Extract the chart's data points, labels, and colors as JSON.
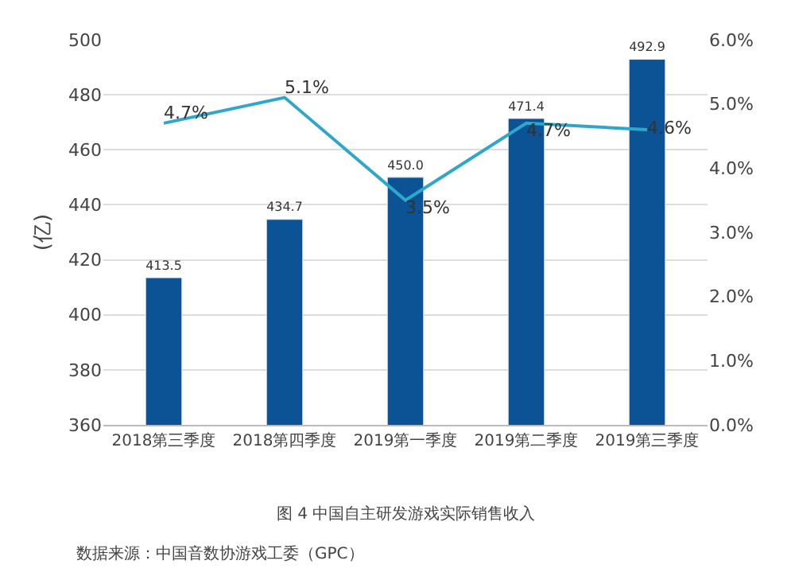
{
  "chart_data": {
    "type": "bar",
    "categories": [
      "2018第三季度",
      "2018第四季度",
      "2019第一季度",
      "2019第二季度",
      "2019第三季度"
    ],
    "ylabel": "(亿)",
    "series": [
      {
        "color": "#0b5394",
        "values": [
          413.5,
          434.7,
          450.0,
          471.4,
          492.9
        ],
        "value_labels": [
          "413.5",
          "434.7",
          "450.0",
          "471.4",
          "492.9"
        ]
      },
      {
        "type": "line",
        "axis": "y2",
        "color": "#2ea7c9",
        "values": [
          4.7,
          5.1,
          3.5,
          4.7,
          4.6
        ],
        "value_labels": [
          "4.7%",
          "5.1%",
          "3.5%",
          "4.7%",
          "4.6%"
        ],
        "marker": "none"
      }
    ],
    "ylim": [
      360,
      500
    ],
    "yticks": [
      360,
      380,
      400,
      420,
      440,
      460,
      480,
      500
    ],
    "y2lim": [
      0,
      6
    ],
    "y2ticks": [
      {
        "value": 0,
        "label": "0.0%"
      },
      {
        "value": 1,
        "label": "1.0%"
      },
      {
        "value": 2,
        "label": "2.0%"
      },
      {
        "value": 3,
        "label": "3.0%"
      },
      {
        "value": 4,
        "label": "4.0%"
      },
      {
        "value": 5,
        "label": "5.0%"
      },
      {
        "value": 6,
        "label": "6.0%"
      }
    ],
    "grid": "y",
    "legend": false,
    "annotations": [
      "图 4 中国自主研发游戏实际销售收入",
      "数据来源：中国音数协游戏工委（GPC）"
    ]
  }
}
